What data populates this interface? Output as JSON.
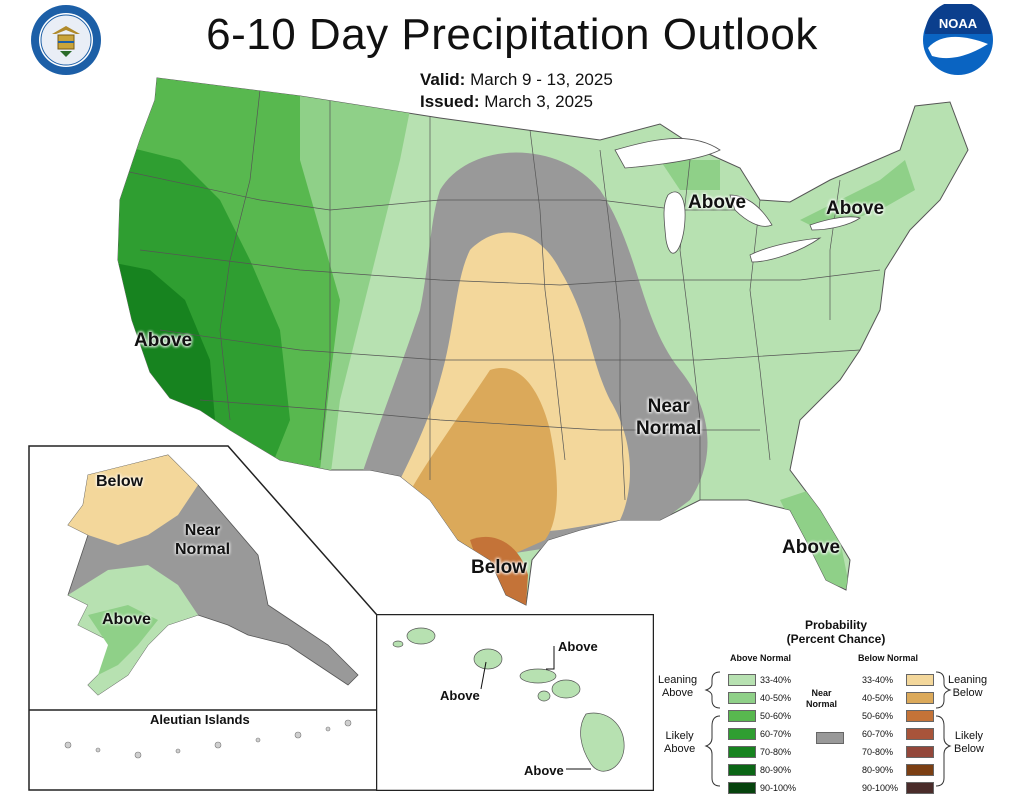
{
  "header": {
    "title": "6-10 Day Precipitation Outlook",
    "valid_label": "Valid:",
    "valid_value": "March 9 - 13, 2025",
    "issued_label": "Issued:",
    "issued_value": "March 3, 2025"
  },
  "logos": {
    "left": "department-of-commerce-seal",
    "right": "noaa-logo",
    "right_text": "NOAA"
  },
  "map_labels": {
    "west_above": "Above",
    "great_lakes_above": "Above",
    "northeast_above": "Above",
    "near_normal": "Near\nNormal",
    "near_normal_line1": "Near",
    "near_normal_line2": "Normal",
    "florida_above": "Above",
    "texas_below": "Below"
  },
  "alaska": {
    "below": "Below",
    "near_line1": "Near",
    "near_line2": "Normal",
    "above": "Above",
    "aleutian_title": "Aleutian Islands"
  },
  "hawaii": {
    "above_top": "Above",
    "above_left": "Above",
    "above_bottom": "Above"
  },
  "legend": {
    "title_line1": "Probability",
    "title_line2": "(Percent Chance)",
    "above_header": "Above Normal",
    "below_header": "Below Normal",
    "near_line1": "Near",
    "near_line2": "Normal",
    "leaning_above_1": "Leaning",
    "leaning_above_2": "Above",
    "likely_above_1": "Likely",
    "likely_above_2": "Above",
    "leaning_below_1": "Leaning",
    "leaning_below_2": "Below",
    "likely_below_1": "Likely",
    "likely_below_2": "Below",
    "above_bins": [
      {
        "label": "33-40%",
        "color": "#b7e1b1"
      },
      {
        "label": "40-50%",
        "color": "#8fd088"
      },
      {
        "label": "50-60%",
        "color": "#58b84f"
      },
      {
        "label": "60-70%",
        "color": "#2f9e31"
      },
      {
        "label": "70-80%",
        "color": "#17831f"
      },
      {
        "label": "80-90%",
        "color": "#0b6616"
      },
      {
        "label": "90-100%",
        "color": "#06430d"
      }
    ],
    "below_bins": [
      {
        "label": "33-40%",
        "color": "#f3d79b"
      },
      {
        "label": "40-50%",
        "color": "#dba95a"
      },
      {
        "label": "50-60%",
        "color": "#c47338"
      },
      {
        "label": "60-70%",
        "color": "#a8543a"
      },
      {
        "label": "70-80%",
        "color": "#93473a"
      },
      {
        "label": "80-90%",
        "color": "#7b3f13"
      },
      {
        "label": "90-100%",
        "color": "#4a2c2a"
      }
    ],
    "near_color": "#999999"
  }
}
